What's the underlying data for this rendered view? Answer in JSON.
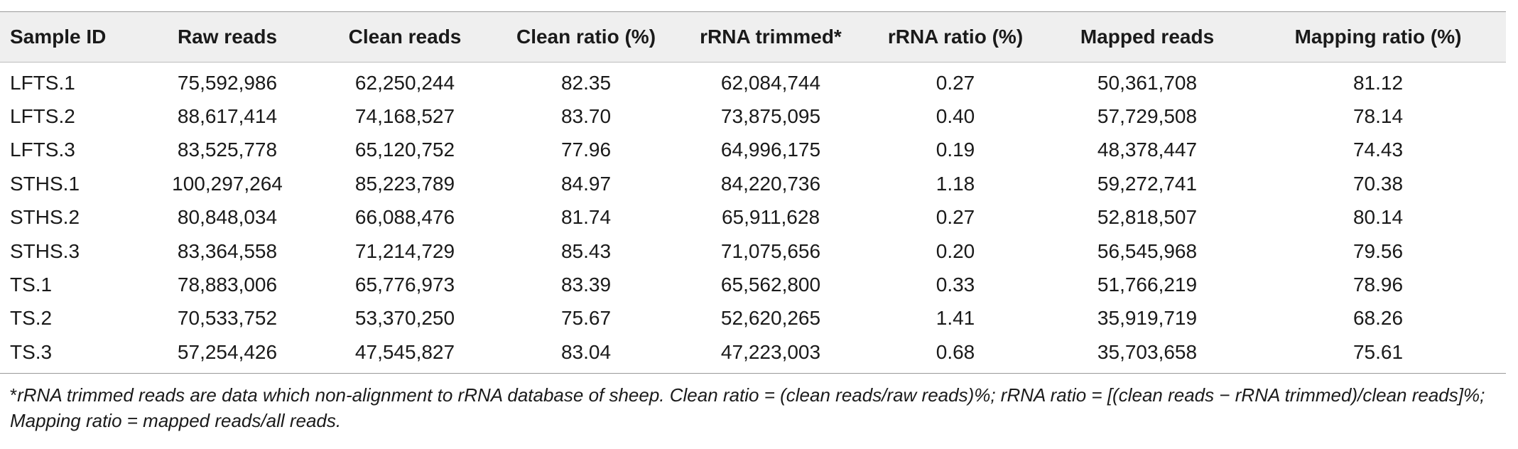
{
  "table": {
    "headers": [
      "Sample ID",
      "Raw reads",
      "Clean reads",
      "Clean ratio (%)",
      "rRNA trimmed*",
      "rRNA ratio (%)",
      "Mapped reads",
      "Mapping ratio (%)"
    ],
    "rows": [
      [
        "LFTS.1",
        "75,592,986",
        "62,250,244",
        "82.35",
        "62,084,744",
        "0.27",
        "50,361,708",
        "81.12"
      ],
      [
        "LFTS.2",
        "88,617,414",
        "74,168,527",
        "83.70",
        "73,875,095",
        "0.40",
        "57,729,508",
        "78.14"
      ],
      [
        "LFTS.3",
        "83,525,778",
        "65,120,752",
        "77.96",
        "64,996,175",
        "0.19",
        "48,378,447",
        "74.43"
      ],
      [
        "STHS.1",
        "100,297,264",
        "85,223,789",
        "84.97",
        "84,220,736",
        "1.18",
        "59,272,741",
        "70.38"
      ],
      [
        "STHS.2",
        "80,848,034",
        "66,088,476",
        "81.74",
        "65,911,628",
        "0.27",
        "52,818,507",
        "80.14"
      ],
      [
        "STHS.3",
        "83,364,558",
        "71,214,729",
        "85.43",
        "71,075,656",
        "0.20",
        "56,545,968",
        "79.56"
      ],
      [
        "TS.1",
        "78,883,006",
        "65,776,973",
        "83.39",
        "65,562,800",
        "0.33",
        "51,766,219",
        "78.96"
      ],
      [
        "TS.2",
        "70,533,752",
        "53,370,250",
        "75.67",
        "52,620,265",
        "1.41",
        "35,919,719",
        "68.26"
      ],
      [
        "TS.3",
        "57,254,426",
        "47,545,827",
        "83.04",
        "47,223,003",
        "0.68",
        "35,703,658",
        "75.61"
      ]
    ]
  },
  "footnote": {
    "marker": "*",
    "text": "rRNA trimmed reads are data which non-alignment to rRNA database of sheep. Clean ratio = (clean reads/raw reads)%; rRNA ratio = [(clean reads − rRNA trimmed)/clean reads]%; Mapping ratio = mapped reads/all reads."
  }
}
